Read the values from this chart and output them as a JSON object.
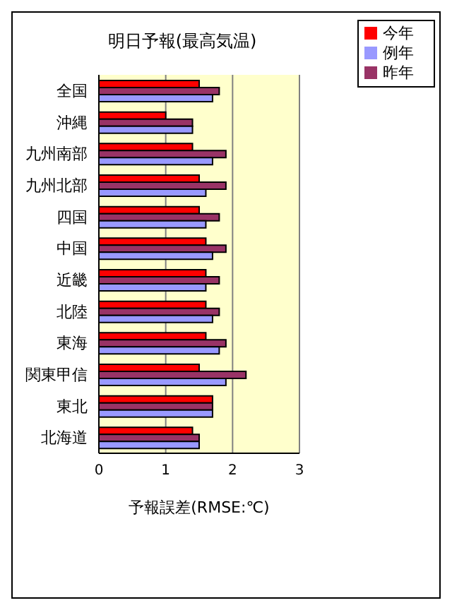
{
  "chart_data": {
    "type": "bar",
    "orientation": "horizontal",
    "title": "明日予報(最高気温)",
    "xlabel": "予報誤差(RMSE:℃)",
    "categories": [
      "全国",
      "沖縄",
      "九州南部",
      "九州北部",
      "四国",
      "中国",
      "近畿",
      "北陸",
      "東海",
      "関東甲信",
      "東北",
      "北海道"
    ],
    "series": [
      {
        "name": "今年",
        "color": "#ff0000",
        "values": [
          1.5,
          1.0,
          1.4,
          1.5,
          1.5,
          1.6,
          1.6,
          1.6,
          1.6,
          1.5,
          1.7,
          1.4
        ]
      },
      {
        "name": "昨年",
        "color": "#993366",
        "values": [
          1.8,
          1.4,
          1.9,
          1.9,
          1.8,
          1.9,
          1.8,
          1.8,
          1.9,
          2.2,
          1.7,
          1.5
        ]
      },
      {
        "name": "例年",
        "color": "#9999ff",
        "values": [
          1.7,
          1.4,
          1.7,
          1.6,
          1.6,
          1.7,
          1.6,
          1.7,
          1.8,
          1.9,
          1.7,
          1.5
        ]
      }
    ],
    "xlim": [
      0,
      3
    ],
    "xticks": [
      0,
      1,
      2,
      3
    ],
    "grid": "x",
    "legend": "top right"
  }
}
